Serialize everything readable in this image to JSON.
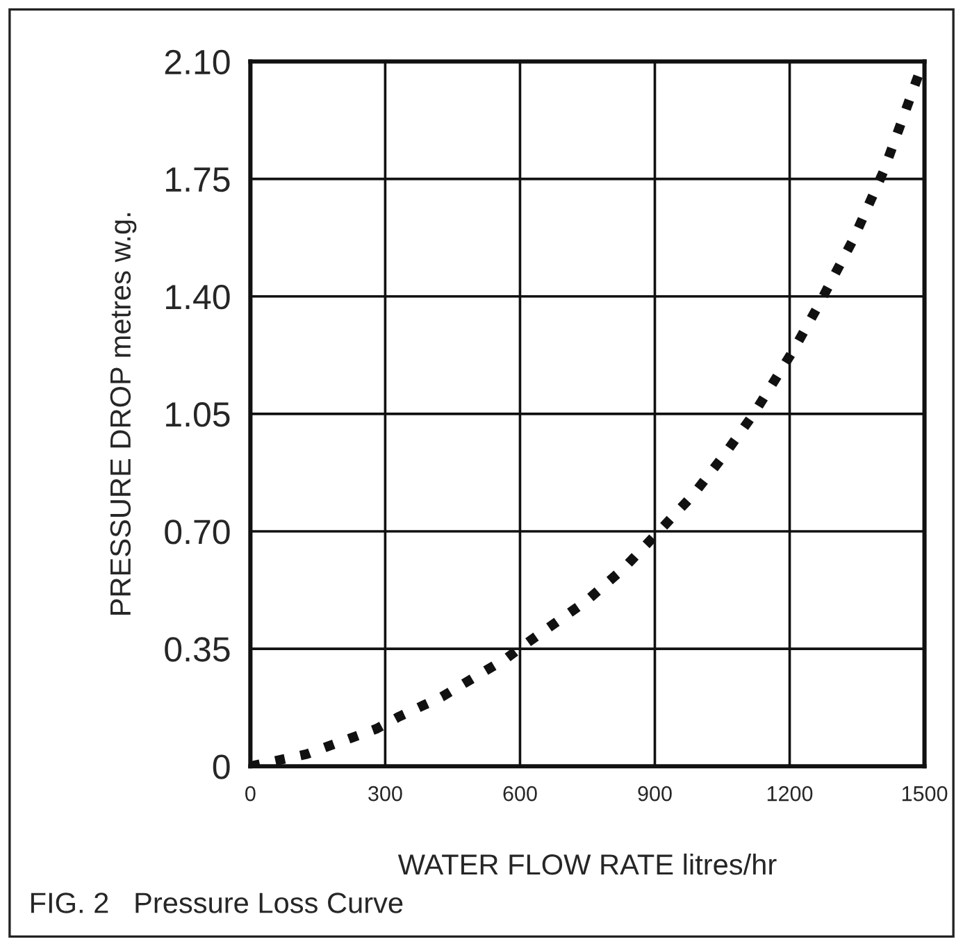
{
  "chart_data": {
    "type": "line",
    "xlabel": "WATER FLOW RATE litres/hr",
    "ylabel": "PRESSURE DROP metres w.g.",
    "annotations": [
      "FIG. 2   Pressure Loss Curve"
    ],
    "x": [
      0,
      125,
      281,
      331,
      426,
      570,
      614,
      748,
      831,
      909,
      986,
      1053,
      1120,
      1209,
      1264,
      1342,
      1409,
      1487
    ],
    "series": [
      {
        "color": "#111111",
        "values": [
          0,
          0.036,
          0.112,
          0.148,
          0.207,
          0.322,
          0.366,
          0.493,
          0.59,
          0.7,
          0.81,
          0.925,
          1.05,
          1.241,
          1.373,
          1.571,
          1.773,
          2.061
        ]
      }
    ],
    "xlim": [
      0,
      1500
    ],
    "ylim": [
      0,
      2.1
    ],
    "xticks": [
      0,
      300,
      600,
      900,
      1200,
      1500
    ],
    "yticks": [
      0,
      0.35,
      {
        "value": 0.7,
        "label": "0.70"
      },
      1.05,
      {
        "value": 1.4,
        "label": "1.40"
      },
      1.75,
      {
        "value": 2.1,
        "label": "2.10"
      }
    ],
    "grid": true,
    "line_style": "dotted",
    "marker": "none"
  }
}
